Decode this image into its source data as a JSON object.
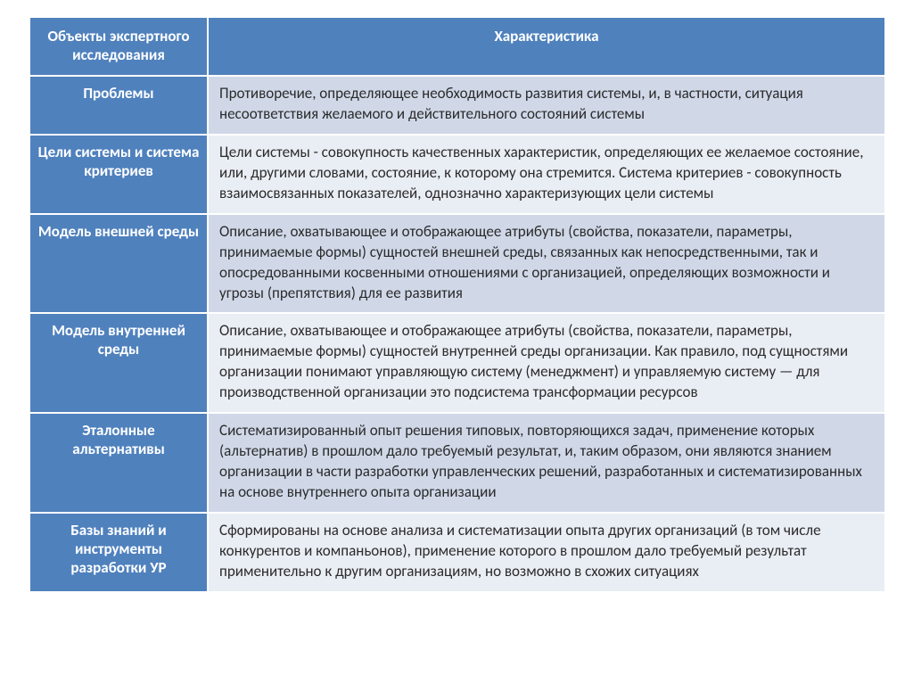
{
  "table": {
    "header_color": "#4f81bd",
    "header_text_color": "#ffffff",
    "row_alt_colors": [
      "#d0d8e8",
      "#e9edf4"
    ],
    "text_color": "#2b2b2b",
    "font_size": 17,
    "left_col_width": 200,
    "right_col_width": 760,
    "columns": [
      "Объекты экспертного исследования",
      "Характеристика"
    ],
    "rows": [
      {
        "label": "Проблемы",
        "desc": "Противоречие, определяющее необходимость развития системы, и, в частности, ситуация несоответствия желаемого и действительного состояний системы"
      },
      {
        "label": "Цели системы и система критериев",
        "desc": "Цели системы - совокупность качественных характеристик, определяющих ее желаемое состояние, или, другими словами, состояние, к которому она стремится. Система критериев - совокупность взаимосвязанных показателей, однозначно характеризующих цели системы"
      },
      {
        "label": "Модель внешней среды",
        "desc": "Описание, охватывающее и отображающее атрибуты (свойства, показатели, параметры, принимаемые формы) сущностей внешней среды, связанных как непосредственными, так и опосредованными косвенными отношениями с организацией, определяющих возможности и угрозы (препятствия) для ее развития"
      },
      {
        "label": "Модель внутренней среды",
        "desc": "Описание, охватывающее и отображающее атрибуты (свойства, показатели, параметры, принимаемые формы) сущностей внутренней среды организации. Как правило, под сущностями организации понимают управляющую систему (менеджмент) и управляемую систему — для производственной организации это подсистема трансформации ресурсов"
      },
      {
        "label": "Эталонные альтернативы",
        "desc": "Систематизированный опыт решения типовых, повторяющихся задач, применение которых (альтернатив) в прошлом дало требуемый результат, и, таким образом, они являются знанием организации в части разработки управленческих решений, разработанных и систематизированных на основе внутреннего опыта организации"
      },
      {
        "label": "Базы знаний и инструменты разработки УР",
        "desc": "Сформированы на основе анализа и систематизации опыта других организаций (в том числе конкурентов и компаньонов), применение которого в прошлом дало требуемый результат применительно к другим организациям, но возможно в схожих ситуациях"
      }
    ]
  }
}
